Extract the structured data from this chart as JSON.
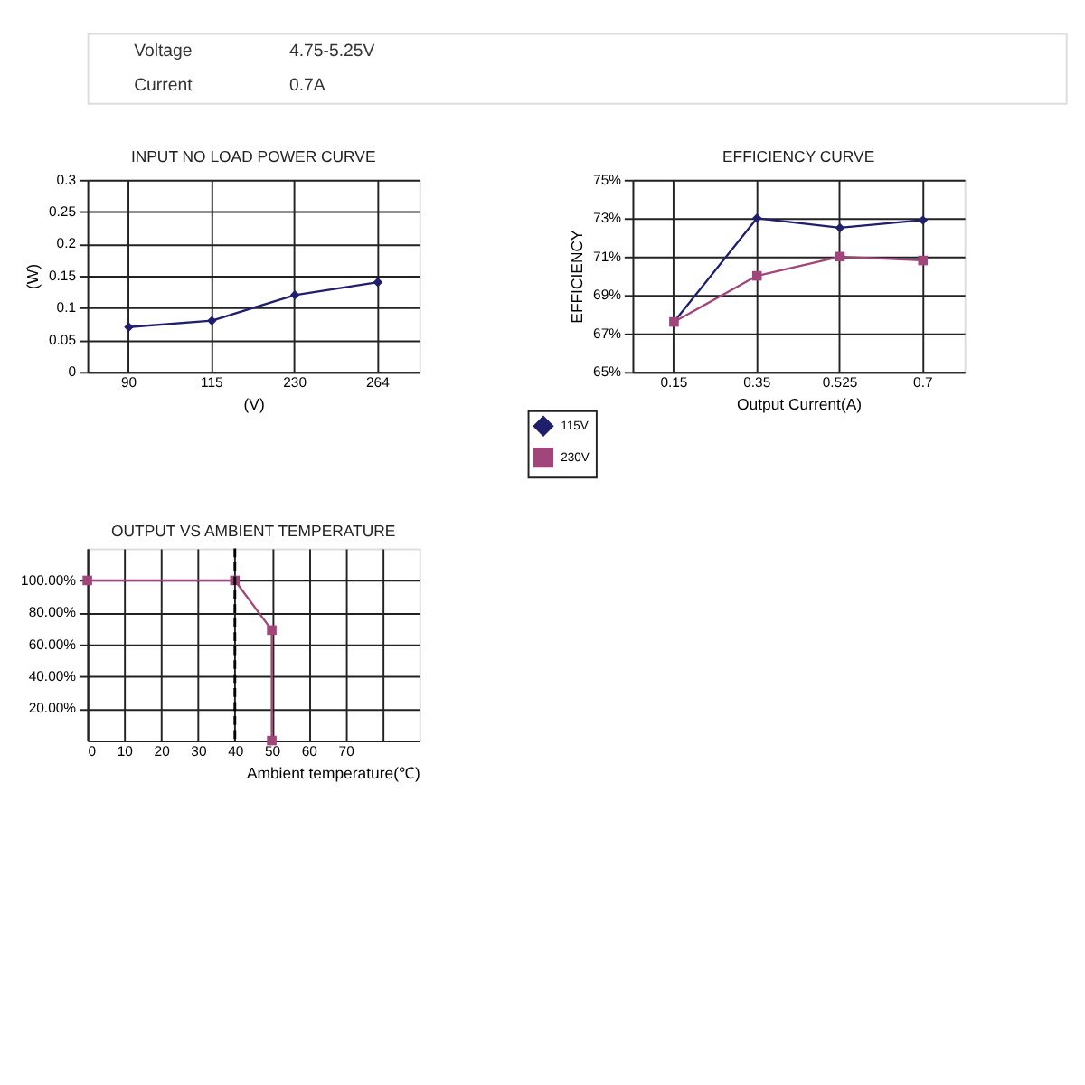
{
  "chart_data": [
    {
      "type": "other",
      "annotations": [
        "Voltage",
        "4.75-5.25V",
        "Current",
        "0.7A"
      ]
    },
    {
      "type": "line",
      "title": "INPUT NO LOAD POWER CURVE",
      "xlabel": "(V)",
      "ylabel": "(W)",
      "categories": [
        "90",
        "115",
        "230",
        "264"
      ],
      "series": [
        {
          "color": "#1f1f6e",
          "values": [
            0.07,
            0.08,
            0.12,
            0.14
          ],
          "marker": "diamond"
        }
      ],
      "ylim": [
        0,
        0.3
      ],
      "yticks": [
        0,
        0.05,
        0.1,
        0.15,
        0.2,
        0.25,
        0.3
      ],
      "grid": true,
      "legend": false
    },
    {
      "type": "line",
      "title": "EFFICIENCY CURVE",
      "xlabel": "Output Current(A)",
      "ylabel": "EFFICIENCY",
      "categories": [
        "0.15",
        "0.35",
        "0.525",
        "0.7"
      ],
      "series": [
        {
          "name": "115V",
          "color": "#1f1f6e",
          "values": [
            67.6,
            73,
            72.5,
            72.9
          ],
          "marker": "diamond"
        },
        {
          "name": "230V",
          "color": "#a0467a",
          "values": [
            67.6,
            70,
            71,
            70.8
          ],
          "marker": "square"
        }
      ],
      "ylim": [
        65,
        75
      ],
      "yticks": [
        {
          "value": 65,
          "label": "65%"
        },
        {
          "value": 67,
          "label": "67%"
        },
        {
          "value": 69,
          "label": "69%"
        },
        {
          "value": 71,
          "label": "71%"
        },
        {
          "value": 73,
          "label": "73%"
        },
        {
          "value": 75,
          "label": "75%"
        }
      ],
      "grid": true,
      "legend": "bottom left"
    },
    {
      "type": "line",
      "title": "OUTPUT VS AMBIENT TEMPERATURE",
      "xlabel": "Ambient temperature(℃)",
      "x": [
        0,
        40,
        50,
        50
      ],
      "series": [
        {
          "color": "#a0467a",
          "values": [
            100,
            100,
            69,
            0
          ],
          "marker": "square"
        }
      ],
      "xlim": [
        0,
        90
      ],
      "xticks": [
        0,
        10,
        20,
        30,
        40,
        50,
        60,
        70,
        {
          "value": 80,
          "label": null
        }
      ],
      "ylim": [
        0,
        120
      ],
      "yticks": [
        {
          "value": 20,
          "label": "20.00%"
        },
        {
          "value": 40,
          "label": "40.00%"
        },
        {
          "value": 60,
          "label": "60.00%"
        },
        {
          "value": 80,
          "label": "80.00%"
        },
        {
          "value": 100,
          "label": "100.00%"
        }
      ],
      "ref_lines": [
        {
          "axis": "x",
          "value": 40,
          "color": "#000000",
          "line_style": "dashed"
        }
      ],
      "grid": true,
      "legend": false
    }
  ]
}
